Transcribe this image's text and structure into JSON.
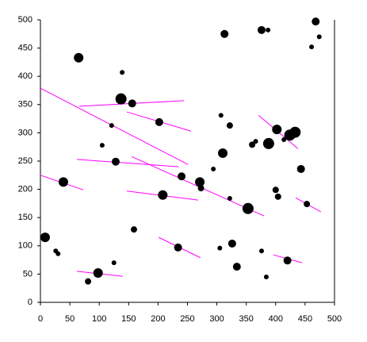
{
  "chart_data": {
    "type": "scatter",
    "color": "#000000",
    "line_color": "#ff00ff",
    "x": [
      65,
      137,
      139,
      156,
      121,
      105,
      128,
      39,
      8,
      26,
      30,
      98,
      81,
      125,
      159,
      202,
      208,
      240,
      234,
      271,
      273,
      294,
      310,
      307,
      322,
      313,
      322,
      353,
      305,
      326,
      334,
      384,
      376,
      420,
      376,
      387,
      360,
      366,
      388,
      402,
      414,
      424,
      433,
      400,
      404,
      443,
      453,
      468,
      474,
      461
    ],
    "y": [
      433,
      360,
      407,
      352,
      313,
      278,
      249,
      213,
      115,
      91,
      86,
      52,
      37,
      70,
      129,
      319,
      190,
      223,
      97,
      213,
      202,
      236,
      264,
      331,
      313,
      475,
      184,
      166,
      96,
      104,
      63,
      45,
      91,
      74,
      482,
      482,
      279,
      285,
      281,
      306,
      288,
      296,
      301,
      199,
      187,
      236,
      174,
      497,
      470,
      452
    ],
    "sizes": [
      6,
      7,
      3,
      5,
      3,
      3,
      5,
      6,
      6,
      3,
      3,
      6,
      4,
      3,
      4,
      5,
      6,
      5,
      5,
      6,
      4,
      3,
      6,
      3,
      4,
      5,
      3,
      7,
      3,
      5,
      5,
      3,
      3,
      5,
      5,
      3,
      4,
      3,
      7,
      6,
      3,
      7,
      7,
      4,
      4,
      5,
      4,
      5,
      3,
      3
    ],
    "lines": [
      {
        "x": [
          0,
          251
        ],
        "y": [
          379,
          244
        ]
      },
      {
        "x": [
          66,
          244
        ],
        "y": [
          347,
          357
        ]
      },
      {
        "x": [
          147,
          256
        ],
        "y": [
          337,
          303
        ]
      },
      {
        "x": [
          62,
          235
        ],
        "y": [
          253,
          240
        ]
      },
      {
        "x": [
          155,
          380
        ],
        "y": [
          258,
          153
        ]
      },
      {
        "x": [
          0,
          73
        ],
        "y": [
          225,
          199
        ]
      },
      {
        "x": [
          147,
          268
        ],
        "y": [
          197,
          181
        ]
      },
      {
        "x": [
          201,
          272
        ],
        "y": [
          115,
          79
        ]
      },
      {
        "x": [
          62,
          140
        ],
        "y": [
          55,
          46
        ]
      },
      {
        "x": [
          371,
          438
        ],
        "y": [
          331,
          272
        ]
      },
      {
        "x": [
          434,
          477
        ],
        "y": [
          185,
          160
        ]
      },
      {
        "x": [
          396,
          445
        ],
        "y": [
          84,
          70
        ]
      }
    ],
    "xlim": [
      0,
      500
    ],
    "ylim": [
      0,
      500
    ],
    "xticks": [
      0,
      50,
      100,
      150,
      200,
      250,
      300,
      350,
      400,
      450,
      500
    ],
    "yticks": [
      0,
      50,
      100,
      150,
      200,
      250,
      300,
      350,
      400,
      450,
      500
    ]
  }
}
